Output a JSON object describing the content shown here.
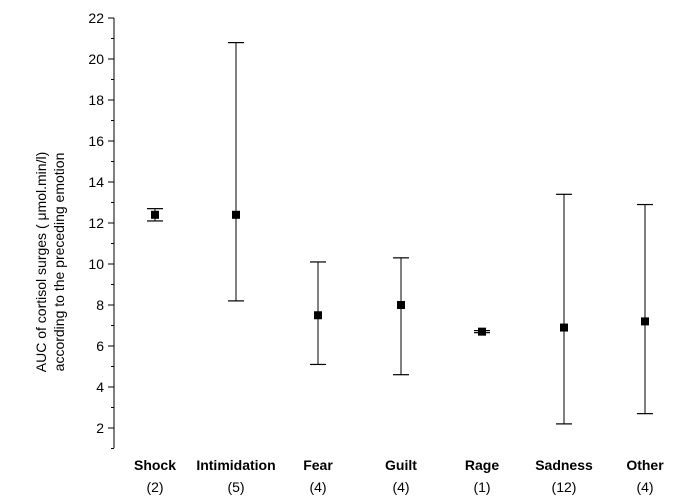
{
  "chart_data": {
    "type": "scatter",
    "ylabel_line1": "AUC of cortisol surges (   μmol.min/l)",
    "ylabel_line2": "according to the preceding emotion",
    "ylim": [
      2,
      22
    ],
    "yticks": [
      "2",
      "4",
      "6",
      "8",
      "10",
      "12",
      "14",
      "16",
      "18",
      "20",
      "22"
    ],
    "categories": [
      "Shock",
      "Intimidation",
      "Fear",
      "Guilt",
      "Rage",
      "Sadness",
      "Other"
    ],
    "counts": [
      "(2)",
      "(5)",
      "(4)",
      "(4)",
      "(1)",
      "(12)",
      "(4)"
    ],
    "series": [
      {
        "values": [
          12.4,
          12.4,
          7.5,
          8.0,
          6.7,
          6.9,
          7.2
        ],
        "error_low": [
          12.1,
          8.2,
          5.1,
          4.6,
          6.65,
          2.2,
          2.7
        ],
        "error_high": [
          12.7,
          20.8,
          10.1,
          10.3,
          6.75,
          13.4,
          12.9
        ]
      }
    ],
    "grid": false,
    "colors": {
      "marker": "#000000",
      "axis": "#000000"
    }
  }
}
